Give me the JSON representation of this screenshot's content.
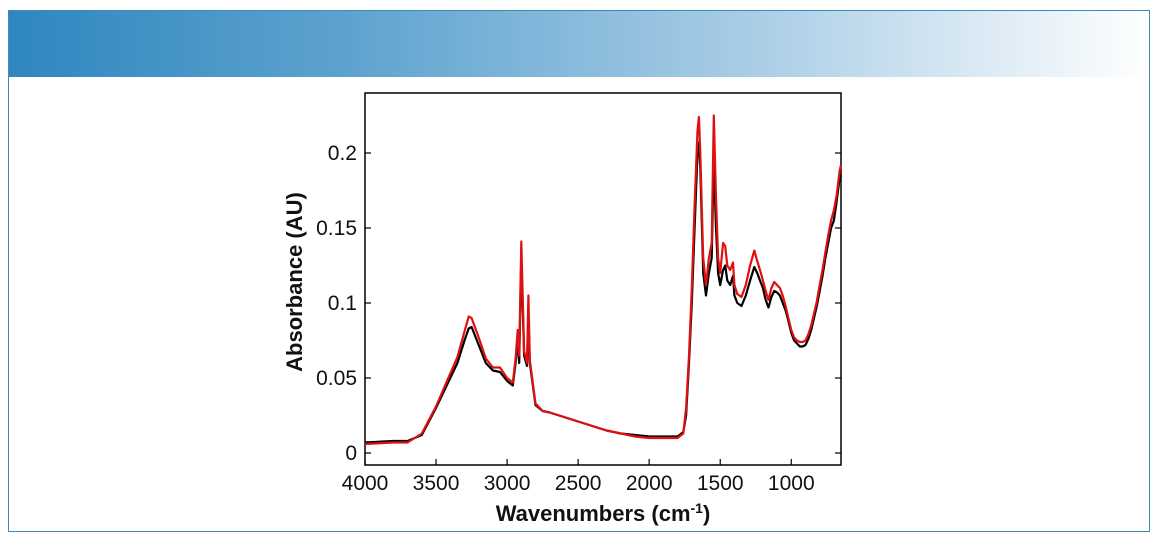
{
  "colors": {
    "header_start": "#2f86bf",
    "frame_border": "#3a8ac4"
  },
  "chart_data": {
    "type": "line",
    "xlabel": "Wavenumbers (cm",
    "xlabel_superscript": "-1",
    "xlabel_suffix": ")",
    "ylabel": "Absorbance (AU)",
    "xlim": [
      4000,
      650
    ],
    "ylim": [
      -0.008,
      0.24
    ],
    "x_reversed": true,
    "grid": false,
    "x_ticks": [
      4000,
      3500,
      3000,
      2500,
      2000,
      1500,
      1000
    ],
    "x_tick_labels": [
      "4000",
      "3500",
      "3000",
      "2500",
      "2000",
      "1500",
      "1000"
    ],
    "y_ticks": [
      0,
      0.05,
      0.1,
      0.15,
      0.2
    ],
    "y_tick_labels": [
      "0",
      "0.05",
      "0.1",
      "0.15",
      "0.2"
    ],
    "series": [
      {
        "color": "#000000",
        "x": [
          4000,
          3800,
          3700,
          3600,
          3500,
          3450,
          3400,
          3350,
          3300,
          3270,
          3250,
          3200,
          3150,
          3100,
          3050,
          3000,
          2960,
          2940,
          2925,
          2915,
          2900,
          2880,
          2860,
          2850,
          2840,
          2800,
          2750,
          2700,
          2600,
          2500,
          2400,
          2300,
          2200,
          2100,
          2000,
          1900,
          1800,
          1760,
          1740,
          1720,
          1700,
          1680,
          1660,
          1650,
          1640,
          1620,
          1600,
          1580,
          1560,
          1545,
          1530,
          1515,
          1500,
          1480,
          1465,
          1450,
          1430,
          1410,
          1400,
          1380,
          1350,
          1320,
          1290,
          1260,
          1240,
          1220,
          1200,
          1180,
          1160,
          1140,
          1120,
          1100,
          1080,
          1060,
          1040,
          1020,
          1000,
          980,
          960,
          940,
          920,
          900,
          880,
          860,
          840,
          820,
          800,
          780,
          760,
          740,
          720,
          700,
          680,
          660,
          650
        ],
        "y": [
          0.007,
          0.008,
          0.008,
          0.012,
          0.03,
          0.04,
          0.05,
          0.06,
          0.075,
          0.083,
          0.084,
          0.072,
          0.06,
          0.055,
          0.054,
          0.048,
          0.045,
          0.06,
          0.075,
          0.06,
          0.131,
          0.065,
          0.058,
          0.094,
          0.06,
          0.032,
          0.028,
          0.027,
          0.024,
          0.021,
          0.018,
          0.015,
          0.013,
          0.012,
          0.011,
          0.011,
          0.011,
          0.014,
          0.025,
          0.06,
          0.1,
          0.15,
          0.2,
          0.207,
          0.19,
          0.12,
          0.105,
          0.12,
          0.13,
          0.196,
          0.15,
          0.12,
          0.112,
          0.122,
          0.125,
          0.115,
          0.112,
          0.118,
          0.105,
          0.1,
          0.098,
          0.105,
          0.115,
          0.124,
          0.12,
          0.115,
          0.11,
          0.102,
          0.097,
          0.104,
          0.108,
          0.107,
          0.105,
          0.1,
          0.095,
          0.088,
          0.08,
          0.075,
          0.073,
          0.071,
          0.071,
          0.072,
          0.076,
          0.082,
          0.09,
          0.098,
          0.108,
          0.118,
          0.13,
          0.14,
          0.15,
          0.155,
          0.168,
          0.183,
          0.185
        ]
      },
      {
        "color": "#e01010",
        "x": [
          4000,
          3800,
          3700,
          3600,
          3500,
          3450,
          3400,
          3350,
          3300,
          3270,
          3250,
          3200,
          3150,
          3100,
          3050,
          3000,
          2960,
          2940,
          2925,
          2915,
          2900,
          2880,
          2860,
          2850,
          2840,
          2800,
          2750,
          2700,
          2600,
          2500,
          2400,
          2300,
          2200,
          2100,
          2000,
          1900,
          1800,
          1760,
          1740,
          1720,
          1700,
          1680,
          1660,
          1650,
          1640,
          1620,
          1600,
          1580,
          1560,
          1545,
          1530,
          1515,
          1500,
          1480,
          1465,
          1450,
          1430,
          1410,
          1400,
          1380,
          1350,
          1320,
          1290,
          1260,
          1240,
          1220,
          1200,
          1180,
          1160,
          1140,
          1120,
          1100,
          1080,
          1060,
          1040,
          1020,
          1000,
          980,
          960,
          940,
          920,
          900,
          880,
          860,
          840,
          820,
          800,
          780,
          760,
          740,
          720,
          700,
          680,
          660,
          650
        ],
        "y": [
          0.006,
          0.007,
          0.007,
          0.013,
          0.031,
          0.042,
          0.053,
          0.064,
          0.081,
          0.091,
          0.09,
          0.077,
          0.063,
          0.057,
          0.057,
          0.05,
          0.047,
          0.063,
          0.082,
          0.065,
          0.141,
          0.068,
          0.06,
          0.105,
          0.062,
          0.033,
          0.028,
          0.027,
          0.024,
          0.021,
          0.018,
          0.015,
          0.013,
          0.011,
          0.01,
          0.01,
          0.01,
          0.013,
          0.03,
          0.065,
          0.11,
          0.165,
          0.215,
          0.224,
          0.2,
          0.13,
          0.112,
          0.13,
          0.14,
          0.225,
          0.17,
          0.13,
          0.12,
          0.14,
          0.138,
          0.125,
          0.122,
          0.127,
          0.112,
          0.106,
          0.104,
          0.112,
          0.125,
          0.135,
          0.128,
          0.122,
          0.115,
          0.108,
          0.102,
          0.11,
          0.114,
          0.112,
          0.11,
          0.105,
          0.098,
          0.09,
          0.082,
          0.077,
          0.075,
          0.074,
          0.074,
          0.075,
          0.079,
          0.085,
          0.093,
          0.101,
          0.112,
          0.122,
          0.134,
          0.145,
          0.155,
          0.162,
          0.172,
          0.188,
          0.192
        ]
      }
    ]
  }
}
